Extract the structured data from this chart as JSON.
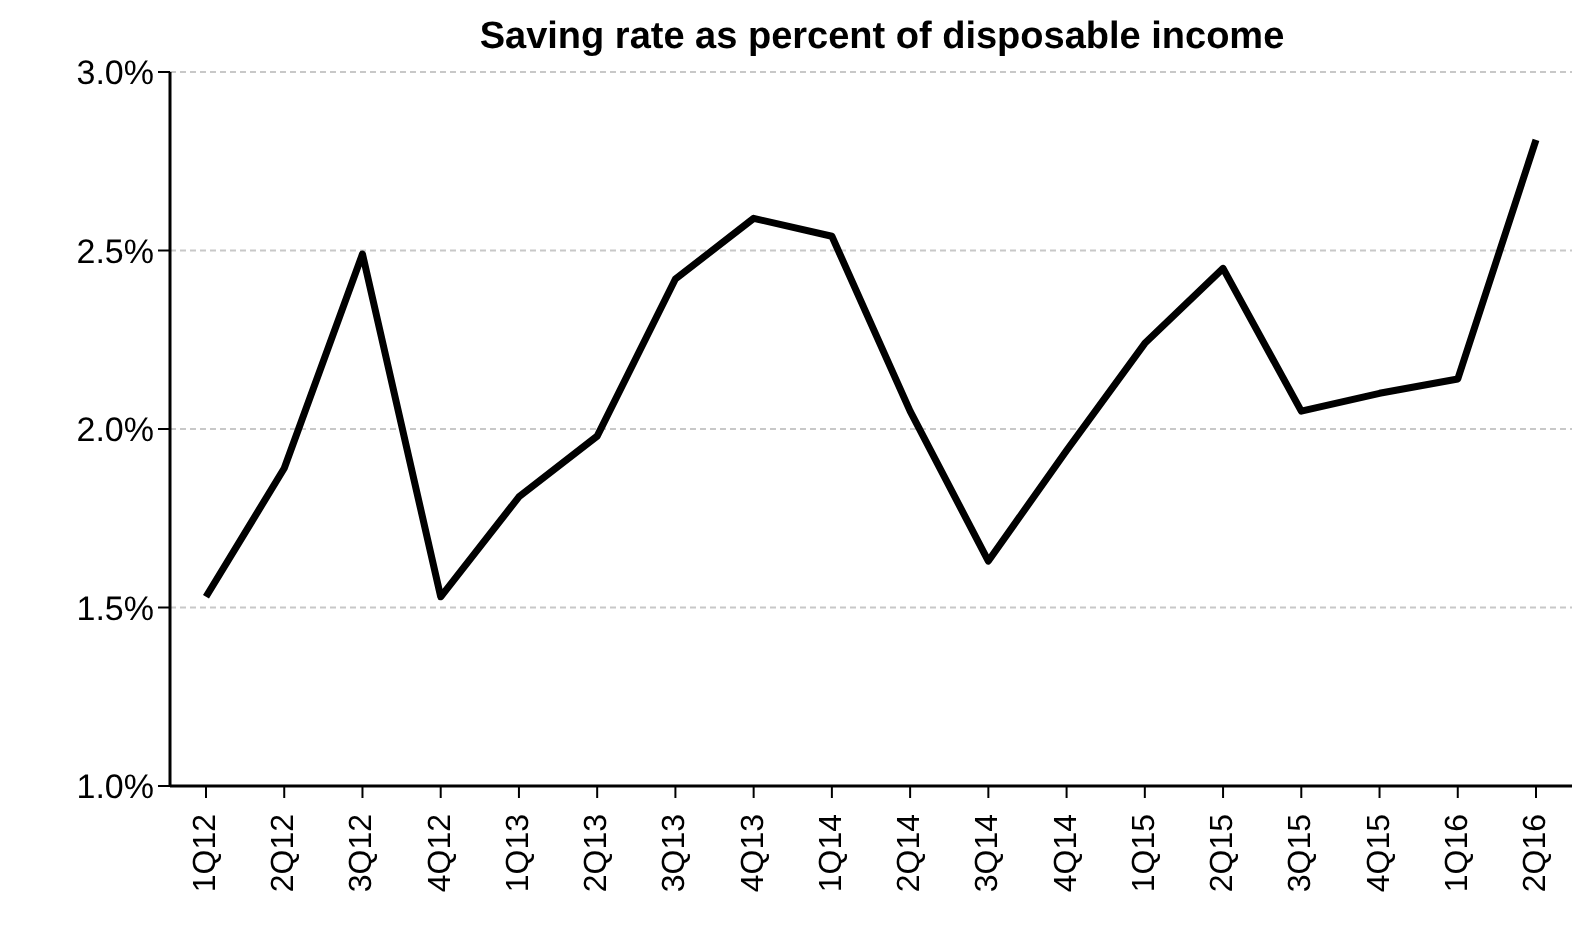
{
  "chart_data": {
    "type": "line",
    "title": "Saving rate as percent of disposable income",
    "categories": [
      "1Q12",
      "2Q12",
      "3Q12",
      "4Q12",
      "1Q13",
      "2Q13",
      "3Q13",
      "4Q13",
      "1Q14",
      "2Q14",
      "3Q14",
      "4Q14",
      "1Q15",
      "2Q15",
      "3Q15",
      "4Q15",
      "1Q16",
      "2Q16"
    ],
    "series": [
      {
        "color": "#000000",
        "values": [
          1.53,
          1.89,
          2.49,
          1.53,
          1.81,
          1.98,
          2.42,
          2.59,
          2.54,
          2.05,
          1.63,
          1.94,
          2.24,
          2.45,
          2.05,
          2.1,
          2.14,
          2.81
        ]
      }
    ],
    "ylim": [
      1.0,
      3.0
    ],
    "yticks": [
      {
        "value": 1.0,
        "label": "1.0%"
      },
      {
        "value": 1.5,
        "label": "1.5%"
      },
      {
        "value": 2.0,
        "label": "2.0%"
      },
      {
        "value": 2.5,
        "label": "2.5%"
      },
      {
        "value": 3.0,
        "label": "3.0%"
      }
    ],
    "grid": "y",
    "legend": false,
    "marker": "none",
    "line_style": "solid"
  }
}
